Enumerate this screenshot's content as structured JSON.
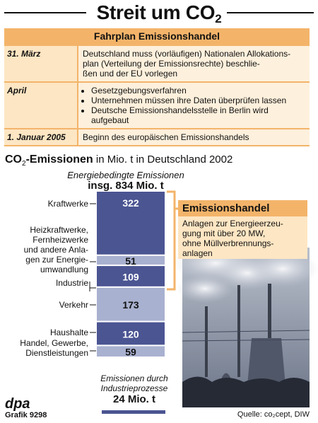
{
  "title": {
    "main": "Streit um CO",
    "sub": "2"
  },
  "schedule": {
    "title": "Fahrplan Emissionshandel",
    "rows": [
      {
        "date": "31. März",
        "lines": [
          "Deutschland muss (vorläufigen) Nationalen Allokations-",
          "plan (Verteilung der Emissionsrechte) beschlie-",
          "ßen und der EU vorlegen"
        ]
      },
      {
        "date": "April",
        "bullets": [
          "Gesetzgebungsverfahren",
          "Unternehmen müssen ihre Daten überprüfen lassen",
          "Deutsche Emissionshandelsstelle in Berlin wird",
          "aufgebaut"
        ]
      },
      {
        "date": "1. Januar 2005",
        "text": "Beginn des europäischen Emissionshandels"
      }
    ]
  },
  "chart_heading": {
    "bold_prefix": "CO",
    "sub": "2",
    "bold_suffix": "-Emissionen",
    "rest": "in Mio. t in Deutschland 2002"
  },
  "chart_data": {
    "type": "bar",
    "subtitle": "Energiebedingte Emissionen",
    "total_label": "insg. 834 Mio. t",
    "total": 834,
    "categories": [
      [
        "Kraftwerke"
      ],
      [
        "Heizkraftwerke,",
        "Fernheizwerke",
        "und andere Anla-",
        "gen zur Energie-",
        "umwandlung"
      ],
      [
        "Industrie"
      ],
      [
        "Verkehr"
      ],
      [
        "Haushalte"
      ],
      [
        "Handel, Gewerbe,",
        "Dienstleistungen"
      ]
    ],
    "values": [
      322,
      51,
      109,
      173,
      120,
      59
    ],
    "colors": [
      "#4b5592",
      "#a9b1d0",
      "#4b5592",
      "#a9b1d0",
      "#4b5592",
      "#a9b1d0"
    ]
  },
  "box": {
    "title": "Emissionshandel",
    "lines": [
      "Anlagen zur Energieerzeu-",
      "gung mit über 20 MW,",
      "ohne Müllverbrennungs-"
    ]
  },
  "box_extra": "anlagen",
  "footer": {
    "process_label": [
      "Emissionen durch",
      "Industrieprozesse"
    ],
    "process_value": "24 Mio. t",
    "logo": "dpa",
    "graphic": "Grafik 9298",
    "source": "Quelle: co₂cept, DIW"
  }
}
